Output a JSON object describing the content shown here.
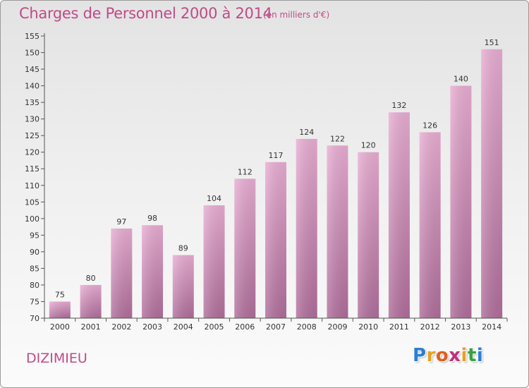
{
  "header": {
    "title": "Charges de Personnel 2000 à 2014",
    "unit": "(en milliers d'€)"
  },
  "footer": {
    "place": "DIZIMIEU",
    "logo_letters": [
      "P",
      "r",
      "o",
      "x",
      "i",
      "t",
      "i"
    ],
    "logo_colors": [
      "#2a7fd4",
      "#e8a020",
      "#e06020",
      "#c03080",
      "#e8a020",
      "#3aa040",
      "#2a7fd4"
    ]
  },
  "colors": {
    "bar_light": "#e9aed3",
    "bar_dark": "#b06e9b",
    "axis": "#555555",
    "grid_tick": "#555555"
  },
  "chart_data": {
    "type": "bar",
    "title": "Charges de Personnel 2000 à 2014",
    "subtitle": "(en milliers d'€)",
    "xlabel": "",
    "ylabel": "",
    "categories": [
      "2000",
      "2001",
      "2002",
      "2003",
      "2004",
      "2005",
      "2006",
      "2007",
      "2008",
      "2009",
      "2010",
      "2011",
      "2012",
      "2013",
      "2014"
    ],
    "values": [
      75,
      80,
      97,
      98,
      89,
      104,
      112,
      117,
      124,
      122,
      120,
      132,
      126,
      140,
      151
    ],
    "ylim": [
      70,
      155
    ],
    "yticks": [
      70,
      75,
      80,
      85,
      90,
      95,
      100,
      105,
      110,
      115,
      120,
      125,
      130,
      135,
      140,
      145,
      150,
      155
    ],
    "grid": false,
    "legend": "none"
  }
}
